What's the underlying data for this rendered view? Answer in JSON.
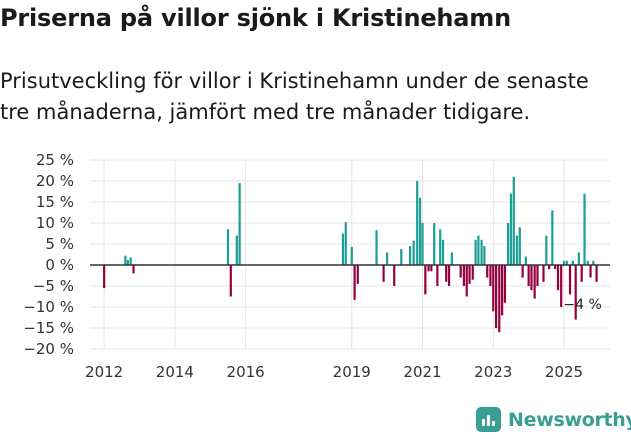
{
  "header": {
    "title": "Priserna på villor sjönk i Kristinehamn",
    "subtitle": "Prisutveckling för villor i Kristinehamn under de senaste tre månaderna, jämfört med tre månader tidigare."
  },
  "brand": {
    "name": "Newsworthy",
    "icon": "newsworthy-logo-icon",
    "color": "#3a9e95"
  },
  "chart_data": {
    "type": "bar",
    "title": "",
    "xlabel": "",
    "ylabel": "",
    "ylim": [
      -20,
      25
    ],
    "yticks": [
      25,
      20,
      15,
      10,
      5,
      0,
      -5,
      -10,
      -15,
      -20
    ],
    "ytick_labels": [
      "25 %",
      "20 %",
      "15 %",
      "10 %",
      "5 %",
      "0 %",
      "−5 %",
      "−10 %",
      "−15 %",
      "−20 %"
    ],
    "xlim": [
      2011.6,
      2026.3
    ],
    "xticks": [
      2012,
      2014,
      2016,
      2019,
      2021,
      2023,
      2025
    ],
    "xtick_labels": [
      "2012",
      "2014",
      "2016",
      "2019",
      "2021",
      "2023",
      "2025"
    ],
    "grid": true,
    "positive_color": "#1a9e96",
    "negative_color": "#95003f",
    "annotation": {
      "label": "−4 %",
      "value": -4
    },
    "series": [
      {
        "name": "Prisutveckling",
        "x": [
          2012.0,
          2012.6,
          2012.67,
          2012.75,
          2012.83,
          2015.5,
          2015.58,
          2015.75,
          2015.83,
          2018.75,
          2018.83,
          2019.0,
          2019.08,
          2019.17,
          2019.7,
          2019.9,
          2020.0,
          2020.2,
          2020.4,
          2020.65,
          2020.75,
          2020.85,
          2020.93,
          2021.0,
          2021.08,
          2021.17,
          2021.25,
          2021.33,
          2021.42,
          2021.5,
          2021.58,
          2021.67,
          2021.75,
          2021.83,
          2022.08,
          2022.17,
          2022.25,
          2022.33,
          2022.42,
          2022.5,
          2022.58,
          2022.67,
          2022.75,
          2022.83,
          2022.92,
          2023.0,
          2023.08,
          2023.17,
          2023.25,
          2023.33,
          2023.42,
          2023.5,
          2023.58,
          2023.67,
          2023.75,
          2023.83,
          2023.92,
          2024.0,
          2024.08,
          2024.17,
          2024.25,
          2024.42,
          2024.5,
          2024.58,
          2024.67,
          2024.75,
          2024.83,
          2024.92,
          2025.0,
          2025.08,
          2025.17,
          2025.25,
          2025.33,
          2025.42,
          2025.5,
          2025.58,
          2025.67,
          2025.75,
          2025.83,
          2025.92
        ],
        "values": [
          -5.5,
          2.2,
          1.2,
          1.8,
          -2.0,
          8.5,
          -7.5,
          7.0,
          19.5,
          7.5,
          10.2,
          4.3,
          -8.3,
          -4.5,
          8.3,
          -4.0,
          3.0,
          -5.0,
          3.8,
          4.5,
          5.8,
          20.0,
          16.0,
          10.0,
          -7.0,
          -1.5,
          -1.5,
          10.0,
          -5.0,
          8.5,
          6.0,
          -4.0,
          -5.0,
          3.0,
          -3.0,
          -5.0,
          -7.5,
          -4.5,
          -3.5,
          6.0,
          7.0,
          6.0,
          4.5,
          -3.0,
          -5.0,
          -11.0,
          -15.0,
          -16.0,
          -12.0,
          -9.0,
          10.0,
          17.0,
          21.0,
          7.0,
          9.0,
          -3.0,
          2.0,
          -5.0,
          -6.0,
          -8.0,
          -5.0,
          -4.0,
          7.0,
          -1.0,
          13.0,
          -1.0,
          -6.0,
          -10.0,
          1.0,
          1.0,
          -7.0,
          1.0,
          -13.0,
          3.0,
          -4.0,
          17.0,
          1.0,
          -3.0,
          1.0,
          -4.0
        ]
      }
    ]
  }
}
